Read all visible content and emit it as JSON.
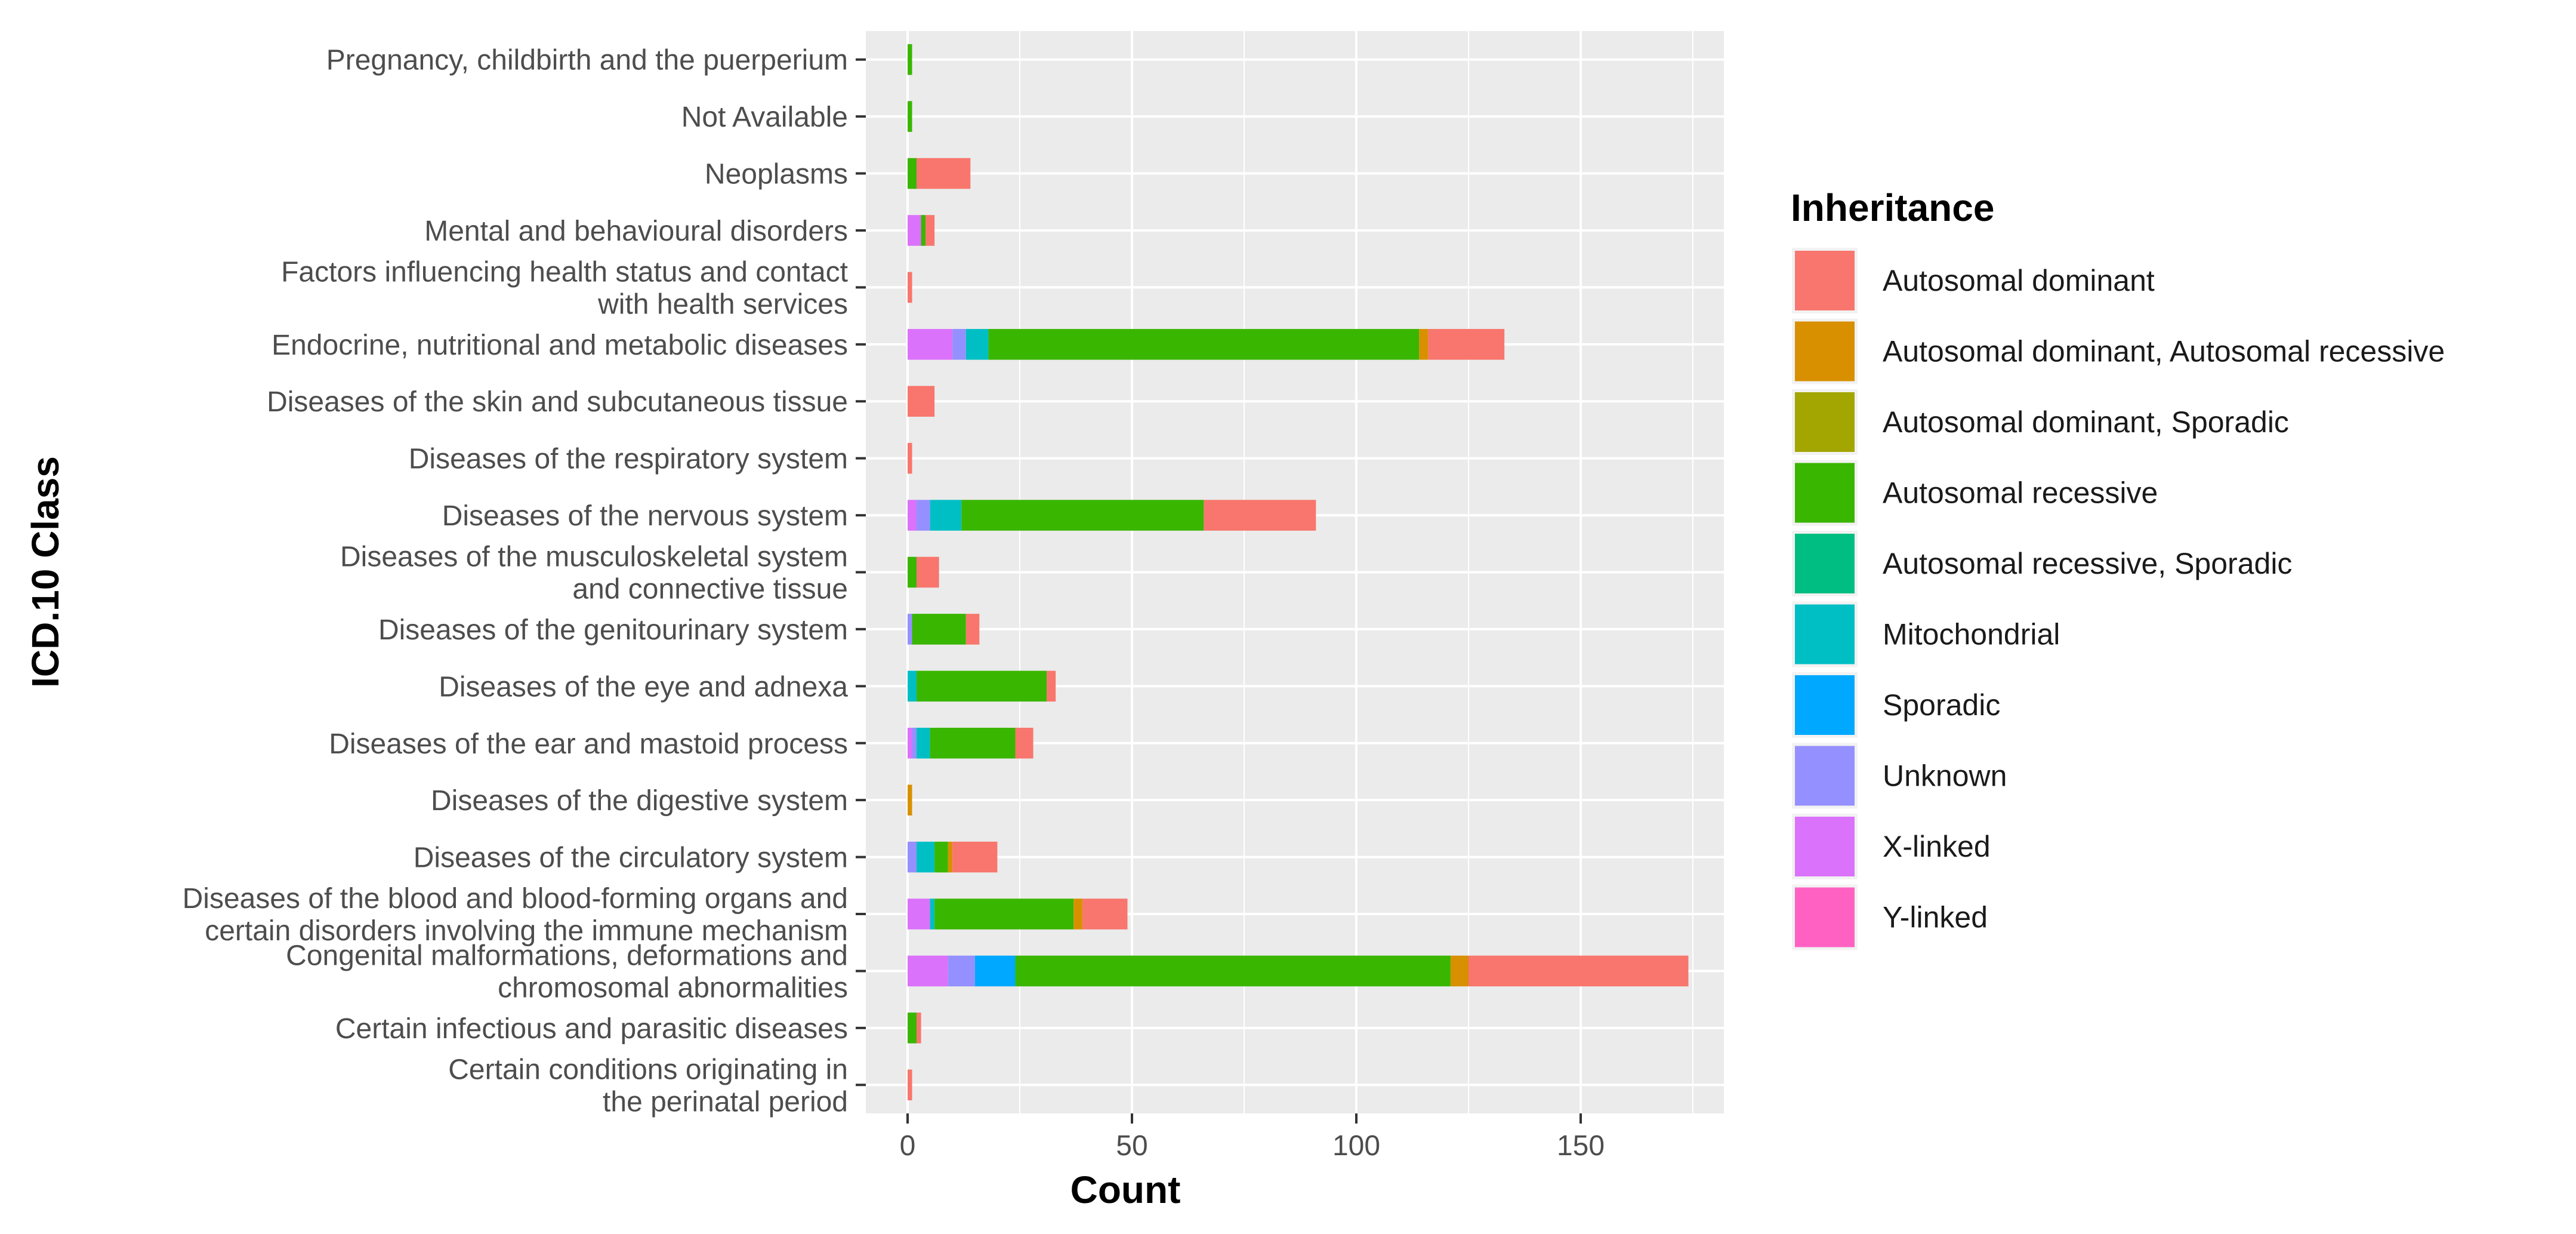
{
  "chart_data": {
    "type": "bar",
    "orientation": "horizontal",
    "stacked": true,
    "xlabel": "Count",
    "ylabel": "ICD.10 Class",
    "xlim": [
      -9,
      183
    ],
    "xticks": [
      0,
      50,
      100,
      150
    ],
    "grid": true,
    "legend_title": "Inheritance",
    "legend_position": "right",
    "categories": [
      "Pregnancy, childbirth and the puerperium",
      "Not Available",
      "Neoplasms",
      "Mental and behavioural disorders",
      "Factors influencing health status and contact\nwith health services",
      "Endocrine, nutritional and metabolic diseases",
      "Diseases of the skin and subcutaneous tissue",
      "Diseases of the respiratory system",
      "Diseases of the nervous system",
      "Diseases of the musculoskeletal system\nand connective tissue",
      "Diseases of the genitourinary system",
      "Diseases of the eye and adnexa",
      "Diseases of the ear and mastoid process",
      "Diseases of the digestive system",
      "Diseases of the circulatory system",
      "Diseases of the blood and blood-forming organs and\ncertain disorders involving the immune mechanism",
      "Congenital malformations, deformations and\nchromosomal abnormalities",
      "Certain infectious and parasitic diseases",
      "Certain conditions originating in\nthe perinatal period"
    ],
    "series": [
      {
        "name": "Y-linked",
        "color": "#FF61C3",
        "values": [
          0,
          0,
          0,
          0,
          0,
          0,
          0,
          0,
          0,
          0,
          0,
          0,
          0,
          0,
          0,
          0,
          0,
          0,
          0
        ]
      },
      {
        "name": "X-linked",
        "color": "#DB72FB",
        "values": [
          0,
          0,
          0,
          3,
          0,
          10,
          0,
          0,
          2,
          0,
          0,
          0,
          1,
          0,
          0,
          5,
          9,
          0,
          0
        ]
      },
      {
        "name": "Unknown",
        "color": "#9590FF",
        "values": [
          0,
          0,
          0,
          0,
          0,
          3,
          0,
          0,
          3,
          0,
          1,
          0,
          1,
          0,
          2,
          0,
          6,
          0,
          0
        ]
      },
      {
        "name": "Sporadic",
        "color": "#00A9FF",
        "values": [
          0,
          0,
          0,
          0,
          0,
          0,
          0,
          0,
          0,
          0,
          0,
          0,
          0,
          0,
          0,
          0,
          9,
          0,
          0
        ]
      },
      {
        "name": "Mitochondrial",
        "color": "#00BFC4",
        "values": [
          0,
          0,
          0,
          0,
          0,
          5,
          0,
          0,
          7,
          0,
          0,
          2,
          3,
          0,
          4,
          1,
          0,
          0,
          0
        ]
      },
      {
        "name": "Autosomal recessive, Sporadic",
        "color": "#00BE81",
        "values": [
          0,
          0,
          0,
          0,
          0,
          0,
          0,
          0,
          0,
          0,
          0,
          0,
          0,
          0,
          0,
          0,
          0,
          0,
          0
        ]
      },
      {
        "name": "Autosomal recessive",
        "color": "#39B600",
        "values": [
          1,
          1,
          2,
          1,
          0,
          96,
          0,
          0,
          54,
          2,
          12,
          29,
          19,
          0,
          3,
          31,
          97,
          2,
          0
        ]
      },
      {
        "name": "Autosomal dominant, Sporadic",
        "color": "#A3A500",
        "values": [
          0,
          0,
          0,
          0,
          0,
          0,
          0,
          0,
          0,
          0,
          0,
          0,
          0,
          0,
          0,
          0,
          0,
          0,
          0
        ]
      },
      {
        "name": "Autosomal dominant, Autosomal recessive",
        "color": "#D89000",
        "values": [
          0,
          0,
          0,
          0,
          0,
          2,
          0,
          0,
          0,
          0,
          0,
          0,
          0,
          1,
          1,
          2,
          4,
          0,
          0
        ]
      },
      {
        "name": "Autosomal dominant",
        "color": "#F8766D",
        "values": [
          0,
          0,
          12,
          2,
          1,
          17,
          6,
          1,
          25,
          5,
          3,
          2,
          4,
          0,
          10,
          10,
          49,
          1,
          1
        ]
      }
    ],
    "legend_order": [
      "Autosomal dominant",
      "Autosomal dominant, Autosomal recessive",
      "Autosomal dominant, Sporadic",
      "Autosomal recessive",
      "Autosomal recessive, Sporadic",
      "Mitochondrial",
      "Sporadic",
      "Unknown",
      "X-linked",
      "Y-linked"
    ]
  }
}
